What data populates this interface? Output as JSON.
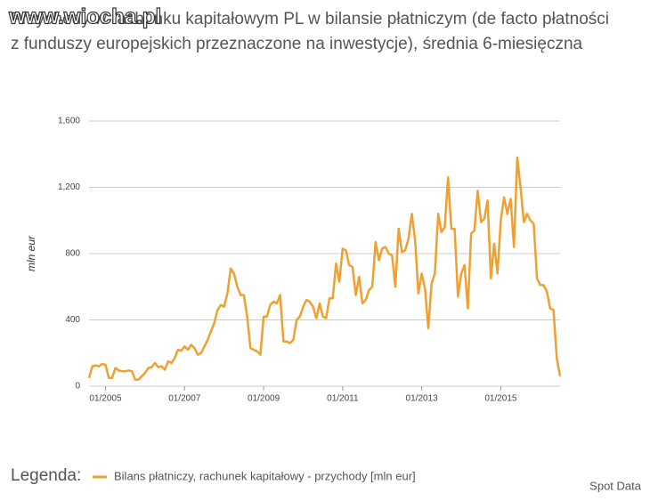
{
  "watermark": "www.wiocha.pl",
  "chart_data": {
    "type": "line",
    "title": "Przychody w rachunku kapitałowym PL w bilansie płatniczym (de facto płatności",
    "subtitle": "z funduszy europejskich przeznaczone na inwestycje), średnia 6-miesięczna",
    "y_label": "mln eur",
    "legend_title": "Legenda:",
    "source": "Spot Data",
    "grid": true,
    "xlim": [
      "2004-08",
      "2016-07"
    ],
    "xticks": [
      {
        "value": "2005-01",
        "label": "01/2005"
      },
      {
        "value": "2007-01",
        "label": "01/2007"
      },
      {
        "value": "2009-01",
        "label": "01/2009"
      },
      {
        "value": "2011-01",
        "label": "01/2011"
      },
      {
        "value": "2013-01",
        "label": "01/2013"
      },
      {
        "value": "2015-01",
        "label": "01/2015"
      }
    ],
    "ylim": [
      0,
      1600
    ],
    "yticks": [
      0,
      400,
      800,
      {
        "value": 1200,
        "label": "1,200"
      },
      {
        "value": 1600,
        "label": "1,600"
      }
    ],
    "x": [
      "2004-08",
      "2004-09",
      "2004-10",
      "2004-11",
      "2004-12",
      "2005-01",
      "2005-02",
      "2005-03",
      "2005-04",
      "2005-05",
      "2005-06",
      "2005-07",
      "2005-08",
      "2005-09",
      "2005-10",
      "2005-11",
      "2005-12",
      "2006-01",
      "2006-02",
      "2006-03",
      "2006-04",
      "2006-05",
      "2006-06",
      "2006-07",
      "2006-08",
      "2006-09",
      "2006-10",
      "2006-11",
      "2006-12",
      "2007-01",
      "2007-02",
      "2007-03",
      "2007-04",
      "2007-05",
      "2007-06",
      "2007-07",
      "2007-08",
      "2007-09",
      "2007-10",
      "2007-11",
      "2007-12",
      "2008-01",
      "2008-02",
      "2008-03",
      "2008-04",
      "2008-05",
      "2008-06",
      "2008-07",
      "2008-08",
      "2008-09",
      "2008-10",
      "2008-11",
      "2008-12",
      "2009-01",
      "2009-02",
      "2009-03",
      "2009-04",
      "2009-05",
      "2009-06",
      "2009-07",
      "2009-08",
      "2009-09",
      "2009-10",
      "2009-11",
      "2009-12",
      "2010-01",
      "2010-02",
      "2010-03",
      "2010-04",
      "2010-05",
      "2010-06",
      "2010-07",
      "2010-08",
      "2010-09",
      "2010-10",
      "2010-11",
      "2010-12",
      "2011-01",
      "2011-02",
      "2011-03",
      "2011-04",
      "2011-05",
      "2011-06",
      "2011-07",
      "2011-08",
      "2011-09",
      "2011-10",
      "2011-11",
      "2011-12",
      "2012-01",
      "2012-02",
      "2012-03",
      "2012-04",
      "2012-05",
      "2012-06",
      "2012-07",
      "2012-08",
      "2012-09",
      "2012-10",
      "2012-11",
      "2012-12",
      "2013-01",
      "2013-02",
      "2013-03",
      "2013-04",
      "2013-05",
      "2013-06",
      "2013-07",
      "2013-08",
      "2013-09",
      "2013-10",
      "2013-11",
      "2013-12",
      "2014-01",
      "2014-02",
      "2014-03",
      "2014-04",
      "2014-05",
      "2014-06",
      "2014-07",
      "2014-08",
      "2014-09",
      "2014-10",
      "2014-11",
      "2014-12",
      "2015-01",
      "2015-02",
      "2015-03",
      "2015-04",
      "2015-05",
      "2015-06",
      "2015-07",
      "2015-08",
      "2015-09",
      "2015-10",
      "2015-11",
      "2015-12",
      "2016-01",
      "2016-02",
      "2016-03",
      "2016-04",
      "2016-05",
      "2016-06",
      "2016-07"
    ],
    "series": [
      {
        "name": "Bilans płatniczy, rachunek kapitałowy - przychody [mln eur]",
        "color": "#f0a030",
        "values": [
          50,
          120,
          125,
          120,
          135,
          130,
          50,
          50,
          110,
          95,
          90,
          90,
          95,
          90,
          40,
          40,
          60,
          80,
          110,
          115,
          140,
          115,
          120,
          100,
          150,
          140,
          170,
          220,
          215,
          240,
          220,
          250,
          230,
          190,
          200,
          240,
          280,
          330,
          380,
          460,
          490,
          480,
          560,
          710,
          680,
          600,
          550,
          550,
          420,
          230,
          220,
          210,
          190,
          420,
          420,
          490,
          510,
          500,
          550,
          270,
          270,
          260,
          280,
          400,
          420,
          480,
          520,
          510,
          480,
          410,
          500,
          420,
          410,
          530,
          530,
          740,
          630,
          830,
          820,
          730,
          720,
          550,
          660,
          500,
          520,
          580,
          600,
          870,
          760,
          830,
          840,
          800,
          790,
          600,
          950,
          810,
          820,
          890,
          1040,
          880,
          560,
          680,
          590,
          350,
          620,
          680,
          1040,
          930,
          960,
          1260,
          950,
          950,
          540,
          680,
          730,
          470,
          920,
          940,
          1180,
          990,
          1010,
          1120,
          650,
          860,
          680,
          1000,
          1140,
          1040,
          1130,
          840,
          1380,
          1200,
          990,
          1040,
          1000,
          980,
          650,
          610,
          610,
          570,
          470,
          460,
          170,
          60
        ]
      }
    ]
  }
}
